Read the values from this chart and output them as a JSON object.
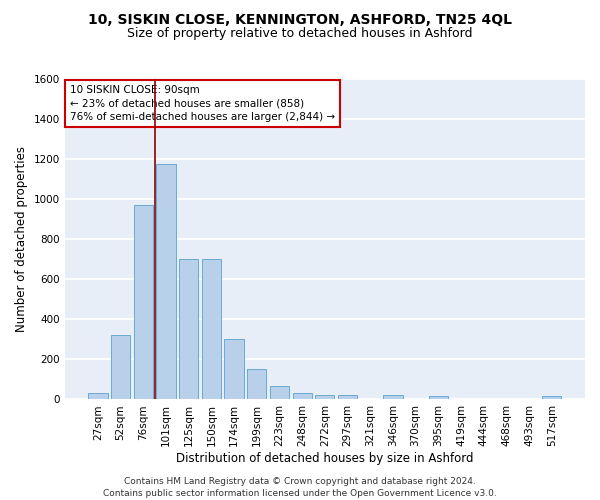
{
  "title1": "10, SISKIN CLOSE, KENNINGTON, ASHFORD, TN25 4QL",
  "title2": "Size of property relative to detached houses in Ashford",
  "xlabel": "Distribution of detached houses by size in Ashford",
  "ylabel": "Number of detached properties",
  "categories": [
    "27sqm",
    "52sqm",
    "76sqm",
    "101sqm",
    "125sqm",
    "150sqm",
    "174sqm",
    "199sqm",
    "223sqm",
    "248sqm",
    "272sqm",
    "297sqm",
    "321sqm",
    "346sqm",
    "370sqm",
    "395sqm",
    "419sqm",
    "444sqm",
    "468sqm",
    "493sqm",
    "517sqm"
  ],
  "values": [
    30,
    320,
    970,
    1175,
    700,
    700,
    300,
    150,
    65,
    30,
    20,
    20,
    0,
    20,
    0,
    15,
    0,
    0,
    0,
    0,
    15
  ],
  "bar_color": "#b8d0ea",
  "bar_edge_color": "#6aaad4",
  "vline_color": "#8b0000",
  "vline_x_index": 2.5,
  "annotation_text": "10 SISKIN CLOSE: 90sqm\n← 23% of detached houses are smaller (858)\n76% of semi-detached houses are larger (2,844) →",
  "annotation_box_color": "#ffffff",
  "annotation_box_edge": "#cc0000",
  "ylim": [
    0,
    1600
  ],
  "yticks": [
    0,
    200,
    400,
    600,
    800,
    1000,
    1200,
    1400,
    1600
  ],
  "bg_color": "#e8eef7",
  "grid_color": "#ffffff",
  "footer": "Contains HM Land Registry data © Crown copyright and database right 2024.\nContains public sector information licensed under the Open Government Licence v3.0.",
  "title1_fontsize": 10,
  "title2_fontsize": 9,
  "xlabel_fontsize": 8.5,
  "ylabel_fontsize": 8.5,
  "tick_fontsize": 7.5,
  "footer_fontsize": 6.5
}
